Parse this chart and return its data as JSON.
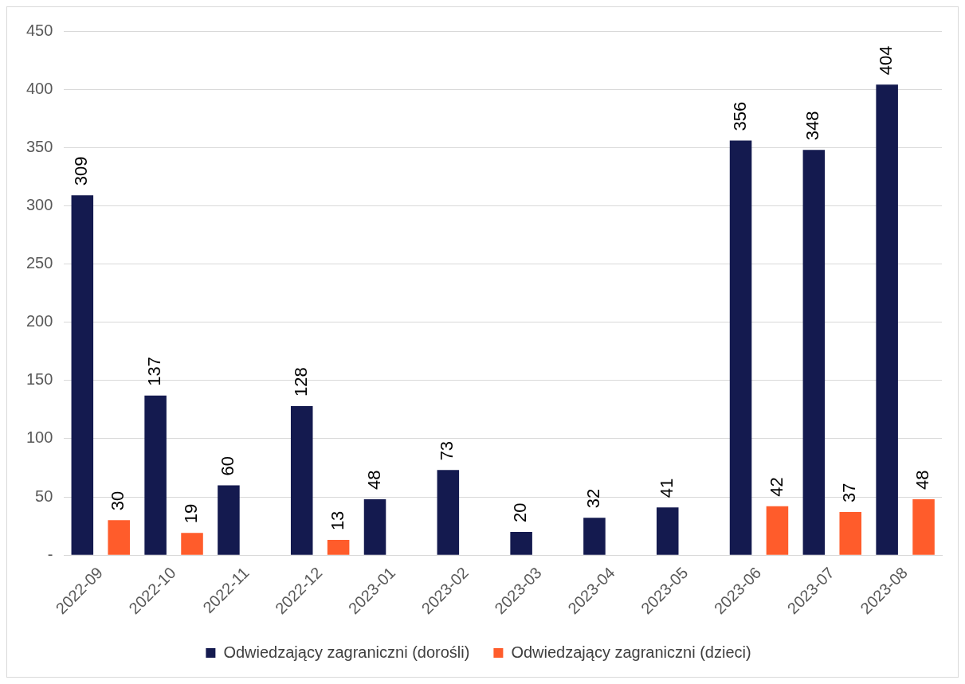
{
  "chart_data": {
    "type": "bar",
    "categories": [
      "2022-09",
      "2022-10",
      "2022-11",
      "2022-12",
      "2023-01",
      "2023-02",
      "2023-03",
      "2023-04",
      "2023-05",
      "2023-06",
      "2023-07",
      "2023-08"
    ],
    "series": [
      {
        "name": "Odwiedzający zagraniczni (dorośli)",
        "color": "#141a4f",
        "values": [
          309,
          137,
          60,
          128,
          48,
          73,
          20,
          32,
          41,
          356,
          348,
          404
        ]
      },
      {
        "name": "Odwiedzający zagraniczni (dzieci)",
        "color": "#ff5c2b",
        "values": [
          30,
          19,
          null,
          13,
          null,
          null,
          null,
          null,
          null,
          42,
          37,
          48
        ]
      }
    ],
    "ylim": [
      0,
      450
    ],
    "yticks": [
      {
        "value": 0,
        "label": "-"
      },
      50,
      100,
      150,
      200,
      250,
      300,
      350,
      400,
      450
    ],
    "grid": "y",
    "legend": "bottom",
    "data_labels": true
  }
}
